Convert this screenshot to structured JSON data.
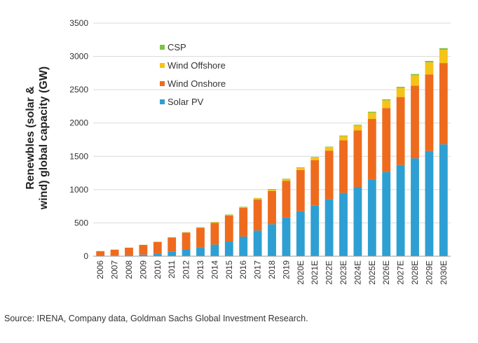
{
  "chart_data": {
    "type": "bar",
    "stacked": true,
    "ylabel_line1": "Renewbles (solar &",
    "ylabel_line2": "wind) global capacity (GW)",
    "ylim": [
      0,
      3500
    ],
    "yticks": [
      0,
      500,
      1000,
      1500,
      2000,
      2500,
      3000,
      3500
    ],
    "grid": true,
    "legend_position": "top-left",
    "categories": [
      "2006",
      "2007",
      "2008",
      "2009",
      "2010",
      "2011",
      "2012",
      "2013",
      "2014",
      "2015",
      "2016",
      "2017",
      "2018",
      "2019",
      "2020E",
      "2021E",
      "2022E",
      "2023E",
      "2024E",
      "2025E",
      "2026E",
      "2027E",
      "2028E",
      "2029E",
      "2030E"
    ],
    "series": [
      {
        "name": "Solar PV",
        "color": "#2e9fd3",
        "values": [
          6,
          8,
          15,
          24,
          40,
          70,
          100,
          135,
          175,
          220,
          295,
          385,
          480,
          580,
          675,
          760,
          855,
          950,
          1040,
          1150,
          1265,
          1370,
          1470,
          1580,
          1680
        ]
      },
      {
        "name": "Wind Onshore",
        "color": "#ee6b1e",
        "values": [
          70,
          90,
          113,
          145,
          174,
          210,
          255,
          290,
          325,
          390,
          430,
          465,
          500,
          550,
          620,
          680,
          730,
          790,
          850,
          910,
          960,
          1020,
          1090,
          1150,
          1220
        ]
      },
      {
        "name": "Wind Offshore",
        "color": "#f6c318",
        "values": [
          1,
          1,
          1,
          2,
          3,
          4,
          5,
          7,
          9,
          12,
          14,
          19,
          23,
          28,
          34,
          42,
          52,
          62,
          72,
          95,
          115,
          135,
          155,
          180,
          200
        ]
      },
      {
        "name": "CSP",
        "color": "#7dc242",
        "values": [
          0.5,
          0.6,
          0.7,
          1,
          1.3,
          1.8,
          2.5,
          3.5,
          4.5,
          5,
          5,
          5,
          6,
          6,
          6,
          7,
          8,
          10,
          12,
          14,
          16,
          18,
          20,
          22,
          24
        ]
      }
    ],
    "legend_order": [
      "CSP",
      "Wind Offshore",
      "Wind Onshore",
      "Solar PV"
    ]
  },
  "source_note": "Source: IRENA, Company data, Goldman Sachs Global Investment Research."
}
